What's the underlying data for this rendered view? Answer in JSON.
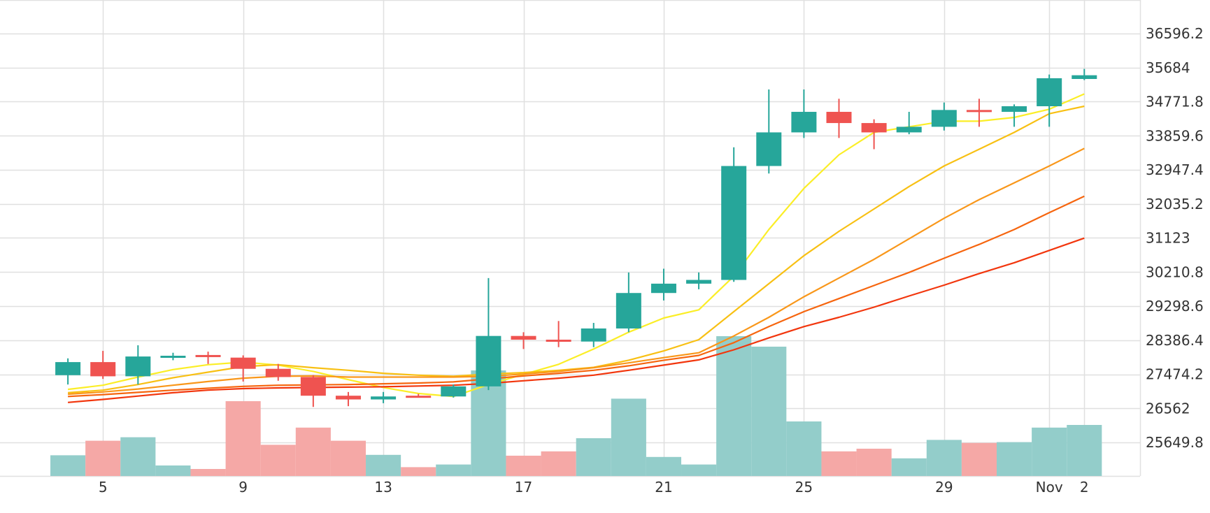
{
  "chart_data": {
    "type": "candlestick",
    "x_tick_labels": [
      {
        "day": 5,
        "label": "5"
      },
      {
        "day": 9,
        "label": "9"
      },
      {
        "day": 13,
        "label": "13"
      },
      {
        "day": 17,
        "label": "17"
      },
      {
        "day": 21,
        "label": "21"
      },
      {
        "day": 25,
        "label": "25"
      },
      {
        "day": 29,
        "label": "29"
      },
      {
        "day": 32,
        "label": "Nov"
      },
      {
        "day": 33,
        "label": "2"
      }
    ],
    "y_tick_labels": [
      "36596.2",
      "35684",
      "34771.8",
      "33859.6",
      "32947.4",
      "32035.2",
      "31123",
      "30210.8",
      "29298.6",
      "28386.4",
      "27474.2",
      "26562",
      "25649.8"
    ],
    "y_ticks": [
      36596.2,
      35684,
      34771.8,
      33859.6,
      32947.4,
      32035.2,
      31123,
      30210.8,
      29298.6,
      28386.4,
      27474.2,
      26562,
      25649.8
    ],
    "ylim": [
      24700,
      37500
    ],
    "candles": [
      {
        "day": 4,
        "open": 27450,
        "high": 27900,
        "low": 27200,
        "close": 27800
      },
      {
        "day": 5,
        "open": 27800,
        "high": 28100,
        "low": 27350,
        "close": 27420
      },
      {
        "day": 6,
        "open": 27420,
        "high": 28250,
        "low": 27200,
        "close": 27950
      },
      {
        "day": 7,
        "open": 27950,
        "high": 28050,
        "low": 27850,
        "close": 27970
      },
      {
        "day": 8,
        "open": 27990,
        "high": 28080,
        "low": 27750,
        "close": 27960
      },
      {
        "day": 9,
        "open": 27920,
        "high": 27980,
        "low": 27280,
        "close": 27620
      },
      {
        "day": 10,
        "open": 27620,
        "high": 27750,
        "low": 27300,
        "close": 27400
      },
      {
        "day": 11,
        "open": 27400,
        "high": 27450,
        "low": 26600,
        "close": 26900
      },
      {
        "day": 12,
        "open": 26900,
        "high": 27000,
        "low": 26620,
        "close": 26800
      },
      {
        "day": 13,
        "open": 26800,
        "high": 27000,
        "low": 26700,
        "close": 26880
      },
      {
        "day": 14,
        "open": 26900,
        "high": 26950,
        "low": 26850,
        "close": 26870
      },
      {
        "day": 15,
        "open": 26880,
        "high": 27200,
        "low": 26850,
        "close": 27150
      },
      {
        "day": 16,
        "open": 27150,
        "high": 30050,
        "low": 27050,
        "close": 28500
      },
      {
        "day": 17,
        "open": 28500,
        "high": 28600,
        "low": 28150,
        "close": 28400
      },
      {
        "day": 18,
        "open": 28400,
        "high": 28900,
        "low": 28200,
        "close": 28350
      },
      {
        "day": 19,
        "open": 28350,
        "high": 28850,
        "low": 28200,
        "close": 28700
      },
      {
        "day": 20,
        "open": 28700,
        "high": 30200,
        "low": 28600,
        "close": 29650
      },
      {
        "day": 21,
        "open": 29650,
        "high": 30300,
        "low": 29450,
        "close": 29900
      },
      {
        "day": 22,
        "open": 29900,
        "high": 30200,
        "low": 29750,
        "close": 30000
      },
      {
        "day": 23,
        "open": 30000,
        "high": 33550,
        "low": 29950,
        "close": 33050
      },
      {
        "day": 24,
        "open": 33050,
        "high": 35100,
        "low": 32850,
        "close": 33950
      },
      {
        "day": 25,
        "open": 33950,
        "high": 35100,
        "low": 33800,
        "close": 34500
      },
      {
        "day": 26,
        "open": 34500,
        "high": 34850,
        "low": 33800,
        "close": 34200
      },
      {
        "day": 27,
        "open": 34200,
        "high": 34300,
        "low": 33500,
        "close": 33950
      },
      {
        "day": 28,
        "open": 33950,
        "high": 34500,
        "low": 33900,
        "close": 34100
      },
      {
        "day": 29,
        "open": 34100,
        "high": 34750,
        "low": 34000,
        "close": 34550
      },
      {
        "day": 30,
        "open": 34550,
        "high": 34850,
        "low": 34100,
        "close": 34500
      },
      {
        "day": 31,
        "open": 34500,
        "high": 34700,
        "low": 34100,
        "close": 34650
      },
      {
        "day": 32,
        "open": 34650,
        "high": 35500,
        "low": 34100,
        "close": 35400
      },
      {
        "day": 33,
        "open": 35380,
        "high": 35650,
        "low": 35350,
        "close": 35480
      }
    ],
    "volume": [
      {
        "day": 4,
        "value": 0.148,
        "direction": "up"
      },
      {
        "day": 5,
        "value": 0.252,
        "direction": "down"
      },
      {
        "day": 6,
        "value": 0.277,
        "direction": "up"
      },
      {
        "day": 7,
        "value": 0.075,
        "direction": "up"
      },
      {
        "day": 8,
        "value": 0.05,
        "direction": "down"
      },
      {
        "day": 9,
        "value": 0.535,
        "direction": "down"
      },
      {
        "day": 10,
        "value": 0.223,
        "direction": "down"
      },
      {
        "day": 11,
        "value": 0.346,
        "direction": "down"
      },
      {
        "day": 12,
        "value": 0.252,
        "direction": "down"
      },
      {
        "day": 13,
        "value": 0.151,
        "direction": "up"
      },
      {
        "day": 14,
        "value": 0.063,
        "direction": "down"
      },
      {
        "day": 15,
        "value": 0.082,
        "direction": "up"
      },
      {
        "day": 16,
        "value": 0.755,
        "direction": "up"
      },
      {
        "day": 17,
        "value": 0.145,
        "direction": "down"
      },
      {
        "day": 18,
        "value": 0.176,
        "direction": "down"
      },
      {
        "day": 19,
        "value": 0.27,
        "direction": "up"
      },
      {
        "day": 20,
        "value": 0.553,
        "direction": "up"
      },
      {
        "day": 21,
        "value": 0.136,
        "direction": "up"
      },
      {
        "day": 22,
        "value": 0.082,
        "direction": "up"
      },
      {
        "day": 23,
        "value": 1.0,
        "direction": "up"
      },
      {
        "day": 24,
        "value": 0.925,
        "direction": "up"
      },
      {
        "day": 25,
        "value": 0.39,
        "direction": "up"
      },
      {
        "day": 26,
        "value": 0.176,
        "direction": "down"
      },
      {
        "day": 27,
        "value": 0.195,
        "direction": "down"
      },
      {
        "day": 28,
        "value": 0.126,
        "direction": "up"
      },
      {
        "day": 29,
        "value": 0.258,
        "direction": "up"
      },
      {
        "day": 30,
        "value": 0.236,
        "direction": "down"
      },
      {
        "day": 31,
        "value": 0.242,
        "direction": "up"
      },
      {
        "day": 32,
        "value": 0.346,
        "direction": "up"
      },
      {
        "day": 33,
        "value": 0.365,
        "direction": "up"
      }
    ],
    "moving_averages": [
      {
        "color": "#fbee27",
        "points": [
          [
            4,
            27070
          ],
          [
            5,
            27180
          ],
          [
            6,
            27400
          ],
          [
            7,
            27600
          ],
          [
            8,
            27730
          ],
          [
            9,
            27800
          ],
          [
            10,
            27720
          ],
          [
            11,
            27550
          ],
          [
            12,
            27330
          ],
          [
            13,
            27120
          ],
          [
            14,
            26960
          ],
          [
            15,
            26880
          ],
          [
            16,
            27200
          ],
          [
            17,
            27470
          ],
          [
            18,
            27740
          ],
          [
            19,
            28150
          ],
          [
            20,
            28600
          ],
          [
            21,
            28980
          ],
          [
            22,
            29200
          ],
          [
            23,
            30100
          ],
          [
            24,
            31350
          ],
          [
            25,
            32450
          ],
          [
            26,
            33350
          ],
          [
            27,
            33950
          ],
          [
            28,
            34100
          ],
          [
            29,
            34250
          ],
          [
            30,
            34250
          ],
          [
            31,
            34350
          ],
          [
            32,
            34570
          ],
          [
            33,
            34980
          ]
        ]
      },
      {
        "color": "#f8c013",
        "points": [
          [
            4,
            26980
          ],
          [
            5,
            27050
          ],
          [
            6,
            27200
          ],
          [
            7,
            27380
          ],
          [
            8,
            27530
          ],
          [
            9,
            27680
          ],
          [
            10,
            27730
          ],
          [
            11,
            27650
          ],
          [
            12,
            27580
          ],
          [
            13,
            27500
          ],
          [
            14,
            27450
          ],
          [
            15,
            27420
          ],
          [
            16,
            27480
          ],
          [
            17,
            27520
          ],
          [
            18,
            27580
          ],
          [
            19,
            27660
          ],
          [
            20,
            27850
          ],
          [
            21,
            28100
          ],
          [
            22,
            28400
          ],
          [
            23,
            29150
          ],
          [
            24,
            29900
          ],
          [
            25,
            30650
          ],
          [
            26,
            31300
          ],
          [
            27,
            31900
          ],
          [
            28,
            32500
          ],
          [
            29,
            33050
          ],
          [
            30,
            33500
          ],
          [
            31,
            33950
          ],
          [
            32,
            34450
          ],
          [
            33,
            34650
          ]
        ]
      },
      {
        "color": "#f9971a",
        "points": [
          [
            4,
            26940
          ],
          [
            5,
            27000
          ],
          [
            6,
            27080
          ],
          [
            7,
            27180
          ],
          [
            8,
            27280
          ],
          [
            9,
            27370
          ],
          [
            10,
            27420
          ],
          [
            11,
            27430
          ],
          [
            12,
            27400
          ],
          [
            13,
            27400
          ],
          [
            14,
            27400
          ],
          [
            15,
            27400
          ],
          [
            16,
            27420
          ],
          [
            17,
            27480
          ],
          [
            18,
            27550
          ],
          [
            19,
            27650
          ],
          [
            20,
            27780
          ],
          [
            21,
            27920
          ],
          [
            22,
            28050
          ],
          [
            23,
            28500
          ],
          [
            24,
            29000
          ],
          [
            25,
            29550
          ],
          [
            26,
            30050
          ],
          [
            27,
            30550
          ],
          [
            28,
            31100
          ],
          [
            29,
            31650
          ],
          [
            30,
            32150
          ],
          [
            31,
            32600
          ],
          [
            32,
            33050
          ],
          [
            33,
            33520
          ]
        ]
      },
      {
        "color": "#f6650e",
        "points": [
          [
            4,
            26880
          ],
          [
            5,
            26930
          ],
          [
            6,
            26990
          ],
          [
            7,
            27050
          ],
          [
            8,
            27100
          ],
          [
            9,
            27150
          ],
          [
            10,
            27180
          ],
          [
            11,
            27190
          ],
          [
            12,
            27200
          ],
          [
            13,
            27220
          ],
          [
            14,
            27240
          ],
          [
            15,
            27270
          ],
          [
            16,
            27350
          ],
          [
            17,
            27430
          ],
          [
            18,
            27500
          ],
          [
            19,
            27580
          ],
          [
            20,
            27700
          ],
          [
            21,
            27850
          ],
          [
            22,
            27980
          ],
          [
            23,
            28320
          ],
          [
            24,
            28750
          ],
          [
            25,
            29150
          ],
          [
            26,
            29500
          ],
          [
            27,
            29850
          ],
          [
            28,
            30200
          ],
          [
            29,
            30580
          ],
          [
            30,
            30950
          ],
          [
            31,
            31350
          ],
          [
            32,
            31800
          ],
          [
            33,
            32240
          ]
        ]
      },
      {
        "color": "#f2360d",
        "points": [
          [
            4,
            26720
          ],
          [
            5,
            26800
          ],
          [
            6,
            26890
          ],
          [
            7,
            26980
          ],
          [
            8,
            27050
          ],
          [
            9,
            27090
          ],
          [
            10,
            27110
          ],
          [
            11,
            27120
          ],
          [
            12,
            27130
          ],
          [
            13,
            27140
          ],
          [
            14,
            27160
          ],
          [
            15,
            27180
          ],
          [
            16,
            27230
          ],
          [
            17,
            27300
          ],
          [
            18,
            27370
          ],
          [
            19,
            27450
          ],
          [
            20,
            27580
          ],
          [
            21,
            27720
          ],
          [
            22,
            27860
          ],
          [
            23,
            28130
          ],
          [
            24,
            28450
          ],
          [
            25,
            28750
          ],
          [
            26,
            29000
          ],
          [
            27,
            29270
          ],
          [
            28,
            29570
          ],
          [
            29,
            29860
          ],
          [
            30,
            30170
          ],
          [
            31,
            30460
          ],
          [
            32,
            30790
          ],
          [
            33,
            31120
          ]
        ]
      }
    ],
    "colors": {
      "up": "#26a69a",
      "down": "#ef5350",
      "volume_up": "#93cdca",
      "volume_down": "#f5a8a6",
      "grid": "#e0e0e0",
      "axis_text": "#333333"
    },
    "grid": true,
    "legend": "none"
  }
}
